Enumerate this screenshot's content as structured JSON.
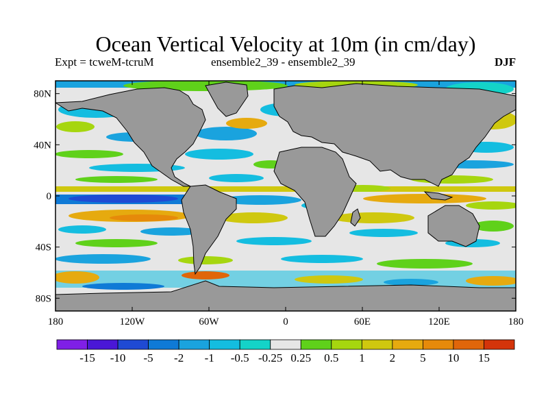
{
  "title": "Ocean Vertical Velocity at 10m (in cm/day)",
  "experiment": "Expt = tcweM-tcruM",
  "ensemble": "ensemble2_39 - ensemble2_39",
  "season": "DJF",
  "map": {
    "projection": "equirectangular",
    "lon_range": [
      -180,
      180
    ],
    "lat_range": [
      -90,
      90
    ],
    "land_color": "#999999",
    "coastline_color": "#000000",
    "y_ticks": [
      {
        "lat": 80,
        "label": "80N"
      },
      {
        "lat": 40,
        "label": "40N"
      },
      {
        "lat": 0,
        "label": "0"
      },
      {
        "lat": -40,
        "label": "40S"
      },
      {
        "lat": -80,
        "label": "80S"
      }
    ],
    "x_ticks": [
      {
        "lon": -180,
        "label": "180"
      },
      {
        "lon": -120,
        "label": "120W"
      },
      {
        "lon": -60,
        "label": "60W"
      },
      {
        "lon": 0,
        "label": "0"
      },
      {
        "lon": 60,
        "label": "60E"
      },
      {
        "lon": 120,
        "label": "120E"
      },
      {
        "lon": 180,
        "label": "180"
      }
    ]
  },
  "colorbar": {
    "colors": [
      "#7f1fe6",
      "#4a17d6",
      "#1f4ad3",
      "#0f7ad6",
      "#1aa3de",
      "#14bde0",
      "#14d3c8",
      "#e6e6e6",
      "#5fd11a",
      "#a6d60f",
      "#cfc80f",
      "#e6aa0f",
      "#e68a0a",
      "#e0660a",
      "#d4340a"
    ],
    "labels": [
      "-15",
      "-10",
      "-5",
      "-2",
      "-1",
      "-0.5",
      "-0.25",
      "0.25",
      "0.5",
      "1",
      "2",
      "5",
      "10",
      "15"
    ]
  }
}
